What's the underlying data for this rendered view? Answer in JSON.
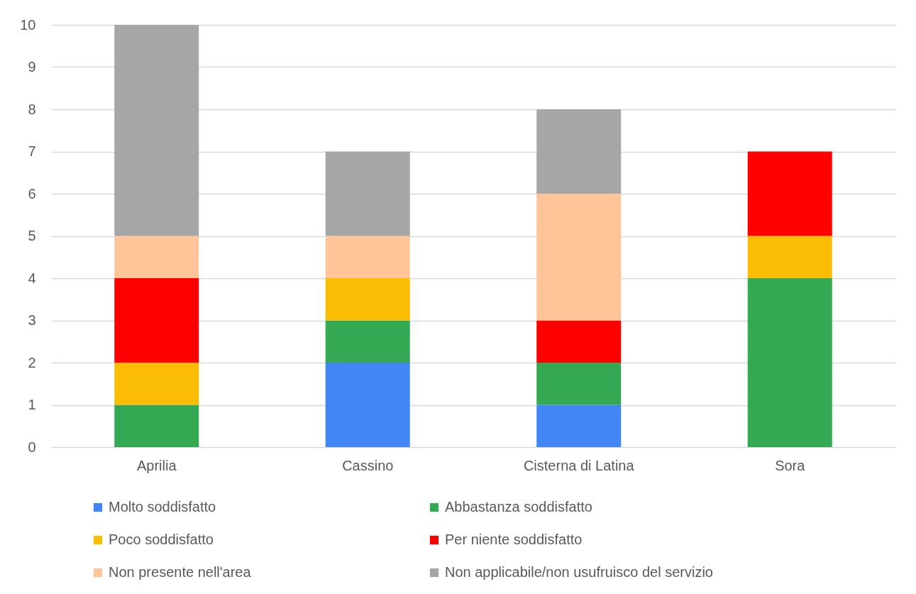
{
  "chart_data": {
    "type": "bar",
    "stacked": true,
    "categories": [
      "Aprilia",
      "Cassino",
      "Cisterna di Latina",
      "Sora"
    ],
    "series": [
      {
        "name": "Molto soddisfatto",
        "color": "#4285f4",
        "values": [
          0,
          2,
          1,
          0
        ]
      },
      {
        "name": "Abbastanza soddisfatto",
        "color": "#34a853",
        "values": [
          1,
          1,
          1,
          4
        ]
      },
      {
        "name": "Poco soddisfatto",
        "color": "#fbbc04",
        "values": [
          1,
          1,
          0,
          1
        ]
      },
      {
        "name": "Per niente soddisfatto",
        "color": "#ff0000",
        "values": [
          2,
          0,
          1,
          2
        ]
      },
      {
        "name": "Non presente nell'area",
        "color": "#ffc599",
        "values": [
          1,
          1,
          3,
          0
        ]
      },
      {
        "name": "Non applicabile/non usufruisco del servizio",
        "color": "#a6a6a6",
        "values": [
          5,
          2,
          2,
          0
        ]
      }
    ],
    "ylim": [
      0,
      10
    ],
    "yticks": [
      0,
      1,
      2,
      3,
      4,
      5,
      6,
      7,
      8,
      9,
      10
    ],
    "grid": "y",
    "legend": "bottom"
  }
}
